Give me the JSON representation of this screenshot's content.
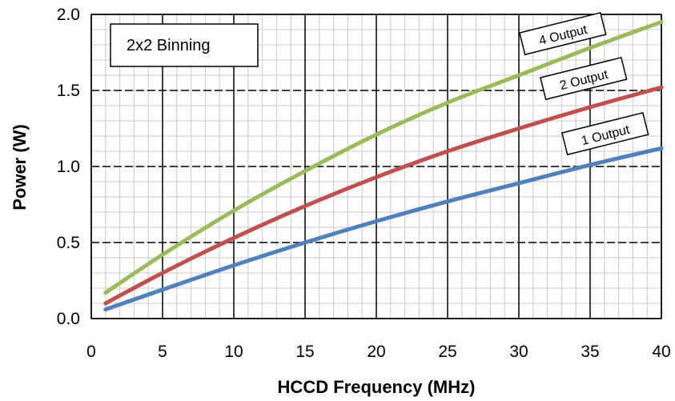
{
  "chart_data": {
    "type": "line",
    "title": "",
    "annotation": "2x2 Binning",
    "xlabel": "HCCD Frequency (MHz)",
    "ylabel": "Power  (W)",
    "xlim": [
      0,
      40
    ],
    "ylim": [
      0,
      2.0
    ],
    "x_ticks": [
      0,
      5,
      10,
      15,
      20,
      25,
      30,
      35,
      40
    ],
    "y_ticks": [
      0.0,
      0.5,
      1.0,
      1.5,
      2.0
    ],
    "x_tick_labels": [
      "0",
      "5",
      "10",
      "15",
      "20",
      "25",
      "30",
      "35",
      "40"
    ],
    "y_tick_labels": [
      "0.0",
      "0.5",
      "1.0",
      "1.5",
      "2.0"
    ],
    "grid": "major and minor",
    "legend": "inline labels near line ends",
    "series": [
      {
        "name": "4 Output",
        "color": "#9bbb59",
        "x": [
          1,
          5,
          10,
          15,
          20,
          25,
          30,
          35,
          40
        ],
        "y": [
          0.17,
          0.42,
          0.71,
          0.97,
          1.21,
          1.42,
          1.6,
          1.78,
          1.95
        ]
      },
      {
        "name": "2 Output",
        "color": "#c0504d",
        "x": [
          1,
          5,
          10,
          15,
          20,
          25,
          30,
          35,
          40
        ],
        "y": [
          0.1,
          0.3,
          0.53,
          0.74,
          0.93,
          1.1,
          1.25,
          1.39,
          1.52
        ]
      },
      {
        "name": "1 Output",
        "color": "#4f81bd",
        "x": [
          1,
          5,
          10,
          15,
          20,
          25,
          30,
          35,
          40
        ],
        "y": [
          0.06,
          0.19,
          0.35,
          0.5,
          0.64,
          0.77,
          0.89,
          1.01,
          1.12
        ]
      }
    ]
  }
}
